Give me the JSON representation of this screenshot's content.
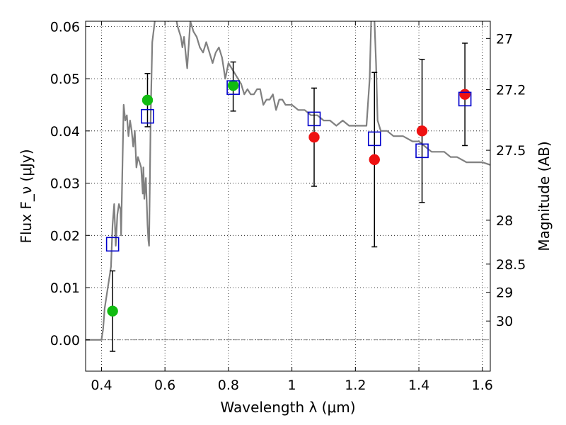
{
  "chart_data": {
    "type": "scatter",
    "xlabel": "Wavelength λ (μm)",
    "ylabel_left": "Flux F_ν (μJy)",
    "ylabel_right": "Magnitude (AB)",
    "xlim": [
      0.35,
      1.625
    ],
    "ylim": [
      -0.006,
      0.061
    ],
    "grid": true,
    "x_ticks": [
      {
        "value": 0.4,
        "label": "0.4"
      },
      {
        "value": 0.6,
        "label": "0.6"
      },
      {
        "value": 0.8,
        "label": "0.8"
      },
      {
        "value": 1.0,
        "label": "1"
      },
      {
        "value": 1.2,
        "label": "1.2"
      },
      {
        "value": 1.4,
        "label": "1.4"
      },
      {
        "value": 1.6,
        "label": "1.6"
      }
    ],
    "y_ticks": [
      {
        "value": 0.0,
        "label": "0.00"
      },
      {
        "value": 0.01,
        "label": "0.01"
      },
      {
        "value": 0.02,
        "label": "0.02"
      },
      {
        "value": 0.03,
        "label": "0.03"
      },
      {
        "value": 0.04,
        "label": "0.04"
      },
      {
        "value": 0.05,
        "label": "0.05"
      },
      {
        "value": 0.06,
        "label": "0.06"
      }
    ],
    "y_right_ticks": [
      {
        "flux": 0.0577,
        "label": "27"
      },
      {
        "flux": 0.0479,
        "label": "27.2"
      },
      {
        "flux": 0.0363,
        "label": "27.5"
      },
      {
        "flux": 0.0229,
        "label": "28"
      },
      {
        "flux": 0.0145,
        "label": "28.5"
      },
      {
        "flux": 0.0091,
        "label": "29"
      },
      {
        "flux": 0.0036,
        "label": "30"
      }
    ],
    "colors": {
      "template": "#808080",
      "model": "#0000cc",
      "green_points": "#11bb11",
      "red_points": "#ee1111",
      "errorbar": "#000000"
    },
    "series": [
      {
        "marker": "line",
        "x": [
          0.35,
          0.4,
          0.405,
          0.41,
          0.42,
          0.43,
          0.435,
          0.44,
          0.445,
          0.45,
          0.455,
          0.46,
          0.462,
          0.465,
          0.47,
          0.475,
          0.48,
          0.485,
          0.49,
          0.495,
          0.5,
          0.505,
          0.51,
          0.515,
          0.52,
          0.525,
          0.53,
          0.532,
          0.535,
          0.54,
          0.545,
          0.548,
          0.55,
          0.555,
          0.56,
          0.57,
          0.58,
          0.59,
          0.6,
          0.61,
          0.62,
          0.63,
          0.64,
          0.65,
          0.655,
          0.66,
          0.665,
          0.67,
          0.68,
          0.69,
          0.7,
          0.71,
          0.72,
          0.73,
          0.74,
          0.75,
          0.76,
          0.77,
          0.78,
          0.79,
          0.8,
          0.81,
          0.82,
          0.83,
          0.84,
          0.85,
          0.86,
          0.87,
          0.88,
          0.89,
          0.9,
          0.91,
          0.92,
          0.93,
          0.94,
          0.95,
          0.96,
          0.97,
          0.98,
          0.99,
          1.0,
          1.02,
          1.04,
          1.06,
          1.08,
          1.1,
          1.12,
          1.14,
          1.16,
          1.18,
          1.2,
          1.22,
          1.235,
          1.245,
          1.25,
          1.255,
          1.26,
          1.265,
          1.27,
          1.28,
          1.3,
          1.32,
          1.35,
          1.38,
          1.4,
          1.42,
          1.44,
          1.46,
          1.48,
          1.5,
          1.52,
          1.55,
          1.58,
          1.6,
          1.625
        ],
        "y": [
          0.0,
          0.0,
          0.002,
          0.006,
          0.01,
          0.014,
          0.022,
          0.026,
          0.018,
          0.024,
          0.026,
          0.025,
          0.02,
          0.03,
          0.045,
          0.042,
          0.043,
          0.039,
          0.042,
          0.04,
          0.037,
          0.04,
          0.033,
          0.035,
          0.034,
          0.033,
          0.028,
          0.033,
          0.027,
          0.031,
          0.022,
          0.019,
          0.018,
          0.043,
          0.057,
          0.062,
          0.062,
          0.062,
          0.062,
          0.061,
          0.062,
          0.063,
          0.06,
          0.058,
          0.056,
          0.058,
          0.055,
          0.052,
          0.061,
          0.059,
          0.058,
          0.056,
          0.055,
          0.057,
          0.055,
          0.053,
          0.055,
          0.056,
          0.054,
          0.05,
          0.053,
          0.052,
          0.051,
          0.05,
          0.049,
          0.047,
          0.048,
          0.047,
          0.047,
          0.048,
          0.048,
          0.045,
          0.046,
          0.046,
          0.047,
          0.044,
          0.046,
          0.046,
          0.045,
          0.045,
          0.045,
          0.044,
          0.044,
          0.043,
          0.043,
          0.042,
          0.042,
          0.041,
          0.042,
          0.041,
          0.041,
          0.041,
          0.041,
          0.05,
          0.062,
          0.062,
          0.061,
          0.053,
          0.042,
          0.04,
          0.04,
          0.039,
          0.039,
          0.038,
          0.038,
          0.037,
          0.036,
          0.036,
          0.036,
          0.035,
          0.035,
          0.034,
          0.034,
          0.034,
          0.0335
        ]
      },
      {
        "marker": "open-square",
        "x": [
          0.435,
          0.545,
          0.815,
          1.07,
          1.26,
          1.41,
          1.545
        ],
        "y": [
          0.0183,
          0.0428,
          0.0483,
          0.0423,
          0.0385,
          0.0362,
          0.0461
        ]
      },
      {
        "marker": "filled-circle",
        "color_key": "green_points",
        "x": [
          0.435,
          0.545,
          0.815
        ],
        "y": [
          0.0055,
          0.0459,
          0.0487
        ],
        "err_low": [
          0.0077,
          0.0051,
          0.0049
        ],
        "err_high": [
          0.0077,
          0.0051,
          0.0045
        ]
      },
      {
        "marker": "filled-circle",
        "color_key": "red_points",
        "x": [
          1.07,
          1.26,
          1.41,
          1.545
        ],
        "y": [
          0.0388,
          0.0345,
          0.04,
          0.047
        ],
        "err_low": [
          0.0094,
          0.0167,
          0.0137,
          0.0098
        ],
        "err_high": [
          0.0094,
          0.0167,
          0.0137,
          0.0098
        ]
      }
    ]
  }
}
